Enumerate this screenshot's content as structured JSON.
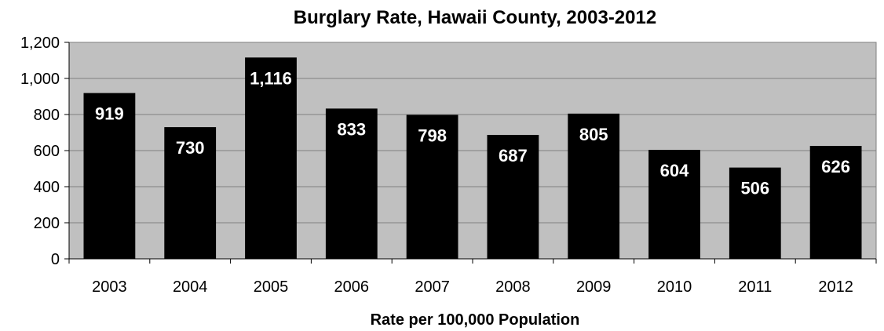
{
  "chart_data": {
    "type": "bar",
    "title": "Burglary Rate, Hawaii County, 2003-2012",
    "xlabel": "Rate per 100,000 Population",
    "ylabel": "",
    "categories": [
      "2003",
      "2004",
      "2005",
      "2006",
      "2007",
      "2008",
      "2009",
      "2010",
      "2011",
      "2012"
    ],
    "values": [
      919,
      730,
      1116,
      833,
      798,
      687,
      805,
      604,
      506,
      626
    ],
    "data_labels": [
      "919",
      "730",
      "1,116",
      "833",
      "798",
      "687",
      "805",
      "604",
      "506",
      "626"
    ],
    "ylim": [
      0,
      1200
    ],
    "yticks": [
      0,
      200,
      400,
      600,
      800,
      1000,
      1200
    ],
    "ytick_labels": [
      "0",
      "200",
      "400",
      "600",
      "800",
      "1,000",
      "1,200"
    ],
    "grid": true,
    "legend": "none",
    "colors": {
      "plot_background": "#c0c0c0",
      "bar": "#000000",
      "data_label": "#ffffff",
      "gridline": "#7f7f7f"
    }
  }
}
